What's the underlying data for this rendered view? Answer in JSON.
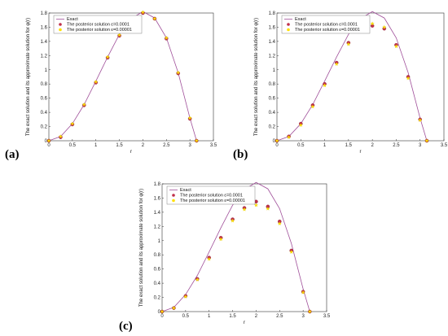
{
  "figure": {
    "panel_labels": [
      "(a)",
      "(b)",
      "(c)"
    ]
  },
  "colors": {
    "exact": "#a0509a",
    "fine_marker": "#c0304a",
    "coarse_marker": "#ffe000",
    "axis": "#333333"
  },
  "chart_data": [
    {
      "panel": "(a)",
      "type": "line",
      "xlabel": "r",
      "ylabel": "The exact solution and its approximate solution for   φ(r)",
      "xlim": [
        0,
        3.5
      ],
      "ylim": [
        0,
        1.8
      ],
      "xticks": [
        "0",
        "0.5",
        "1",
        "1.5",
        "2",
        "2.5",
        "3",
        "3.5"
      ],
      "yticks": [
        "0",
        "0.2",
        "0.4",
        "0.6",
        "0.8",
        "1",
        "1.2",
        "1.4",
        "1.6",
        "1.8"
      ],
      "legend": [
        "Exact",
        "The posterior solution ε=0.0001",
        "The posterior solution ε=0.00001"
      ],
      "legend_position": "top-left",
      "series": [
        {
          "name": "Exact",
          "kind": "line",
          "x": [
            0,
            0.25,
            0.5,
            0.75,
            1,
            1.25,
            1.5,
            1.75,
            2,
            2.25,
            2.5,
            2.75,
            3,
            3.1416
          ],
          "y": [
            0,
            0.06,
            0.24,
            0.51,
            0.84,
            1.18,
            1.5,
            1.72,
            1.82,
            1.73,
            1.45,
            0.96,
            0.32,
            0
          ]
        },
        {
          "name": "The posterior solution ε=0.0001",
          "kind": "markers",
          "x": [
            0,
            0.25,
            0.5,
            0.75,
            1,
            1.25,
            1.5,
            1.75,
            2,
            2.25,
            2.5,
            2.75,
            3,
            3.1416
          ],
          "y": [
            0,
            0.05,
            0.23,
            0.5,
            0.82,
            1.17,
            1.48,
            1.7,
            1.8,
            1.72,
            1.44,
            0.95,
            0.31,
            0
          ]
        },
        {
          "name": "The posterior solution ε=0.00001",
          "kind": "markers",
          "x": [
            0,
            0.25,
            0.5,
            0.75,
            1,
            1.25,
            1.5,
            1.75,
            2,
            2.25,
            2.5,
            2.75,
            3,
            3.1416
          ],
          "y": [
            0,
            0.06,
            0.24,
            0.51,
            0.83,
            1.18,
            1.49,
            1.71,
            1.81,
            1.72,
            1.45,
            0.96,
            0.32,
            0
          ]
        }
      ]
    },
    {
      "panel": "(b)",
      "type": "line",
      "xlabel": "r",
      "ylabel": "The exact solution and its approximate solution for   φ(r)",
      "xlim": [
        0,
        3.5
      ],
      "ylim": [
        0,
        1.8
      ],
      "xticks": [
        "0",
        "0.5",
        "1",
        "1.5",
        "2",
        "2.5",
        "3",
        "3.5"
      ],
      "yticks": [
        "0",
        "0.2",
        "0.4",
        "0.6",
        "0.8",
        "1",
        "1.2",
        "1.4",
        "1.6",
        "1.8"
      ],
      "legend": [
        "Exact",
        "The posterior solution ε=0.0001",
        "The posterior solution ε=0.00001"
      ],
      "legend_position": "top-left",
      "series": [
        {
          "name": "Exact",
          "kind": "line",
          "x": [
            0,
            0.25,
            0.5,
            0.75,
            1,
            1.25,
            1.5,
            1.75,
            2,
            2.25,
            2.5,
            2.75,
            3,
            3.1416
          ],
          "y": [
            0,
            0.06,
            0.24,
            0.51,
            0.84,
            1.18,
            1.5,
            1.72,
            1.82,
            1.73,
            1.45,
            0.96,
            0.32,
            0
          ]
        },
        {
          "name": "The posterior solution ε=0.0001",
          "kind": "markers",
          "x": [
            0,
            0.25,
            0.5,
            0.75,
            1,
            1.25,
            1.5,
            1.75,
            2,
            2.25,
            2.5,
            2.75,
            3,
            3.1416
          ],
          "y": [
            0,
            0.06,
            0.24,
            0.5,
            0.8,
            1.1,
            1.38,
            1.55,
            1.62,
            1.58,
            1.35,
            0.9,
            0.3,
            0
          ]
        },
        {
          "name": "The posterior solution ε=0.00001",
          "kind": "markers",
          "x": [
            0,
            0.25,
            0.5,
            0.75,
            1,
            1.25,
            1.5,
            1.75,
            2,
            2.25,
            2.5,
            2.75,
            3,
            3.1416
          ],
          "y": [
            0,
            0.05,
            0.22,
            0.48,
            0.78,
            1.08,
            1.36,
            1.54,
            1.65,
            1.6,
            1.33,
            0.88,
            0.29,
            0
          ]
        }
      ]
    },
    {
      "panel": "(c)",
      "type": "line",
      "xlabel": "r",
      "ylabel": "The exact solution and its approximate solution for   φ(r)",
      "xlim": [
        0,
        3.5
      ],
      "ylim": [
        0,
        1.8
      ],
      "xticks": [
        "0",
        "0.5",
        "1",
        "1.5",
        "2",
        "2.5",
        "3",
        "3.5"
      ],
      "yticks": [
        "0",
        "0.2",
        "0.4",
        "0.6",
        "0.8",
        "1",
        "1.2",
        "1.4",
        "1.6",
        "1.8"
      ],
      "legend": [
        "Exact",
        "The posterior solution ε=0.0001",
        "The posterior solution ε=0.00001"
      ],
      "legend_position": "top-left",
      "series": [
        {
          "name": "Exact",
          "kind": "line",
          "x": [
            0,
            0.25,
            0.5,
            0.75,
            1,
            1.25,
            1.5,
            1.75,
            2,
            2.25,
            2.5,
            2.75,
            3,
            3.1416
          ],
          "y": [
            0,
            0.06,
            0.24,
            0.51,
            0.84,
            1.18,
            1.5,
            1.72,
            1.82,
            1.73,
            1.45,
            0.96,
            0.32,
            0
          ]
        },
        {
          "name": "The posterior solution ε=0.0001",
          "kind": "markers",
          "x": [
            0,
            0.25,
            0.5,
            0.75,
            1,
            1.25,
            1.5,
            1.75,
            2,
            2.25,
            2.5,
            2.75,
            3,
            3.1416
          ],
          "y": [
            0,
            0.05,
            0.22,
            0.46,
            0.76,
            1.04,
            1.3,
            1.46,
            1.55,
            1.48,
            1.27,
            0.86,
            0.28,
            0
          ]
        },
        {
          "name": "The posterior solution ε=0.00001",
          "kind": "markers",
          "x": [
            0,
            0.25,
            0.5,
            0.75,
            1,
            1.25,
            1.5,
            1.75,
            2,
            2.25,
            2.5,
            2.75,
            3,
            3.1416
          ],
          "y": [
            0,
            0.05,
            0.21,
            0.45,
            0.74,
            1.02,
            1.28,
            1.44,
            1.5,
            1.45,
            1.24,
            0.84,
            0.27,
            0
          ]
        }
      ]
    }
  ]
}
